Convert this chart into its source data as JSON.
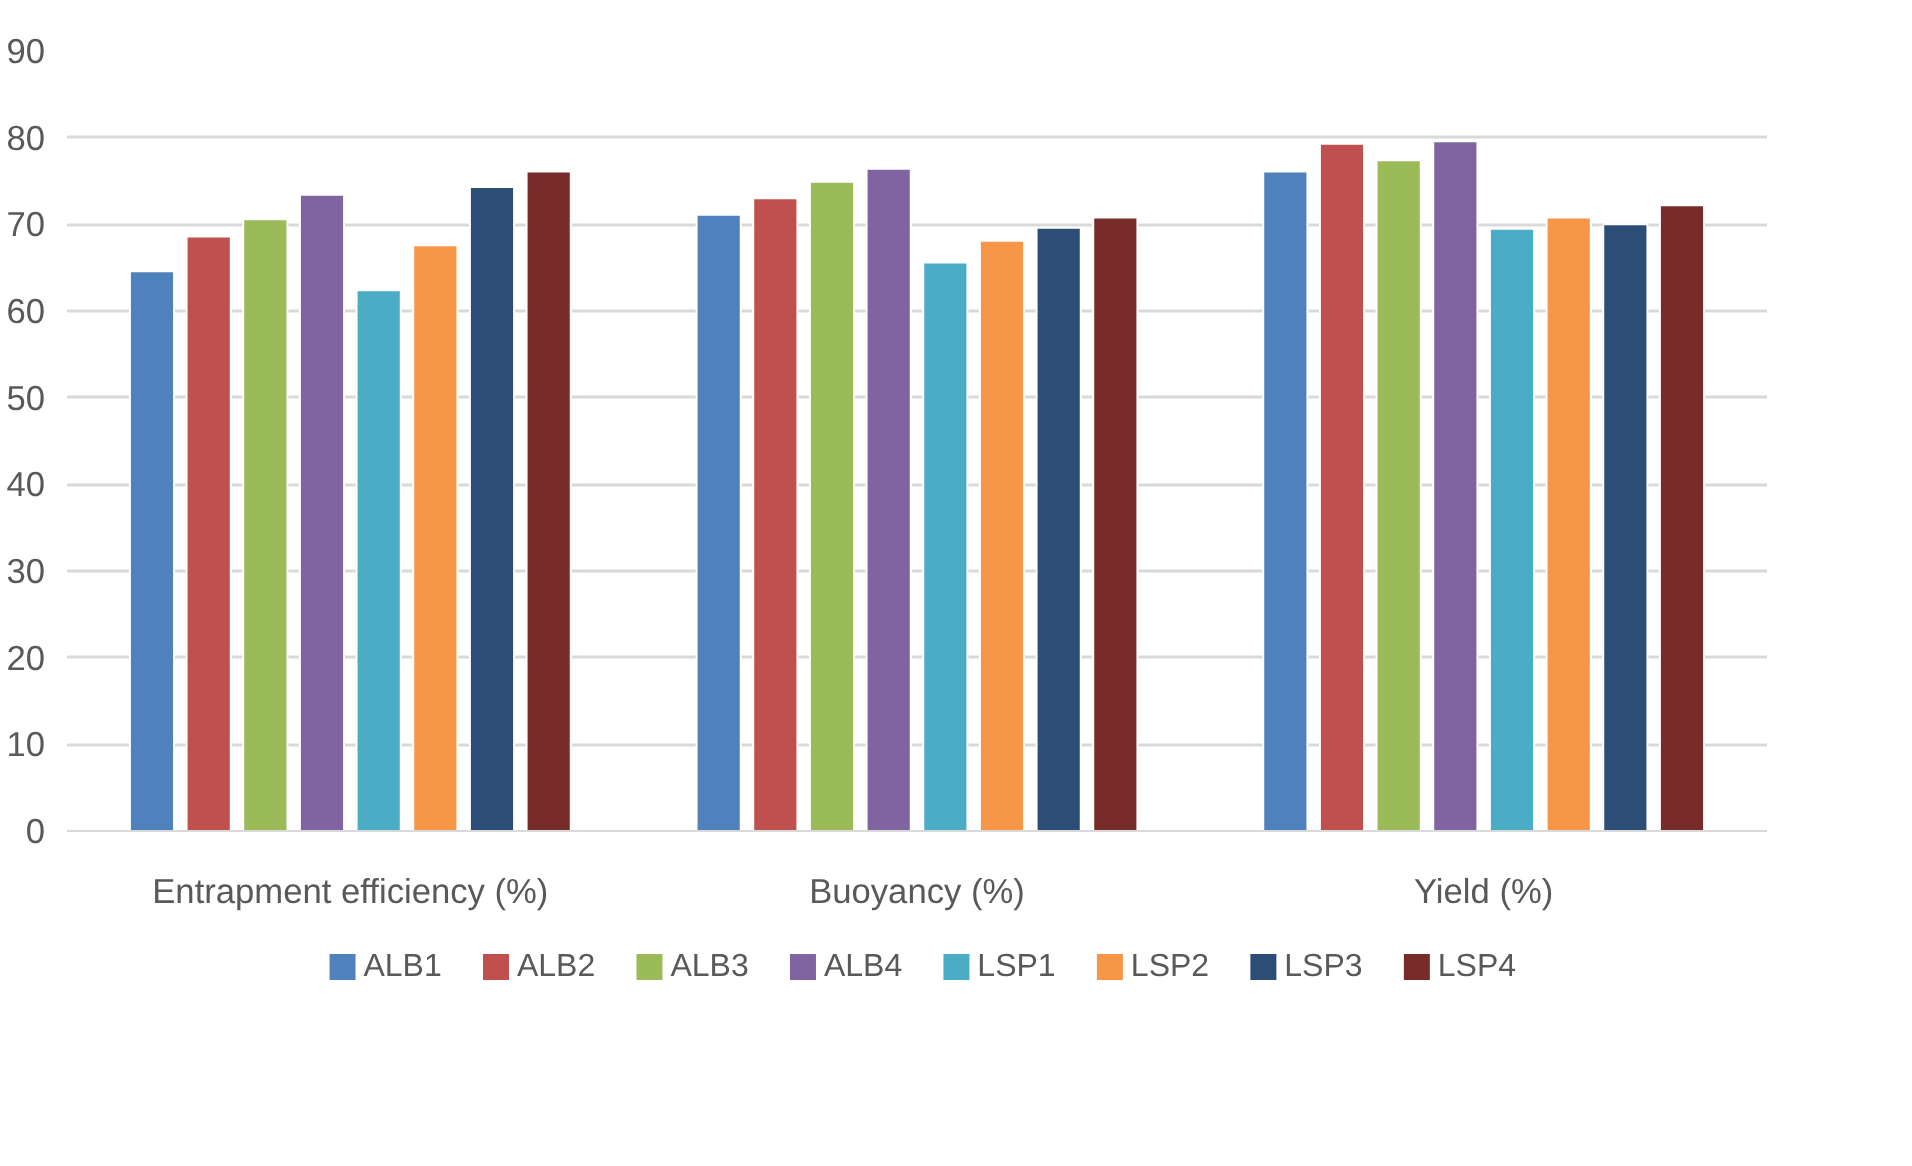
{
  "chart_data": {
    "type": "bar",
    "categories": [
      "Entrapment efficiency (%)",
      "Buoyancy (%)",
      "Yield (%)"
    ],
    "series": [
      {
        "name": "ALB1",
        "color": "#4f81bd",
        "values": [
          64.6,
          71.1,
          76.1
        ]
      },
      {
        "name": "ALB2",
        "color": "#c0504d",
        "values": [
          68.6,
          73.0,
          79.3
        ]
      },
      {
        "name": "ALB3",
        "color": "#9bbb59",
        "values": [
          70.6,
          74.9,
          77.4
        ]
      },
      {
        "name": "ALB4",
        "color": "#8064a2",
        "values": [
          73.4,
          76.4,
          79.6
        ]
      },
      {
        "name": "LSP1",
        "color": "#4bacc6",
        "values": [
          62.4,
          65.6,
          69.5
        ]
      },
      {
        "name": "LSP2",
        "color": "#f79646",
        "values": [
          67.6,
          68.1,
          70.8
        ]
      },
      {
        "name": "LSP3",
        "color": "#2c4d75",
        "values": [
          74.3,
          69.6,
          70.0
        ]
      },
      {
        "name": "LSP4",
        "color": "#772c2a",
        "values": [
          76.1,
          70.8,
          72.2
        ]
      }
    ],
    "ylim": [
      0,
      90
    ],
    "yticks": [
      0,
      10,
      20,
      30,
      40,
      50,
      60,
      70,
      80,
      90
    ],
    "grid": "y",
    "legend": "bottom"
  }
}
